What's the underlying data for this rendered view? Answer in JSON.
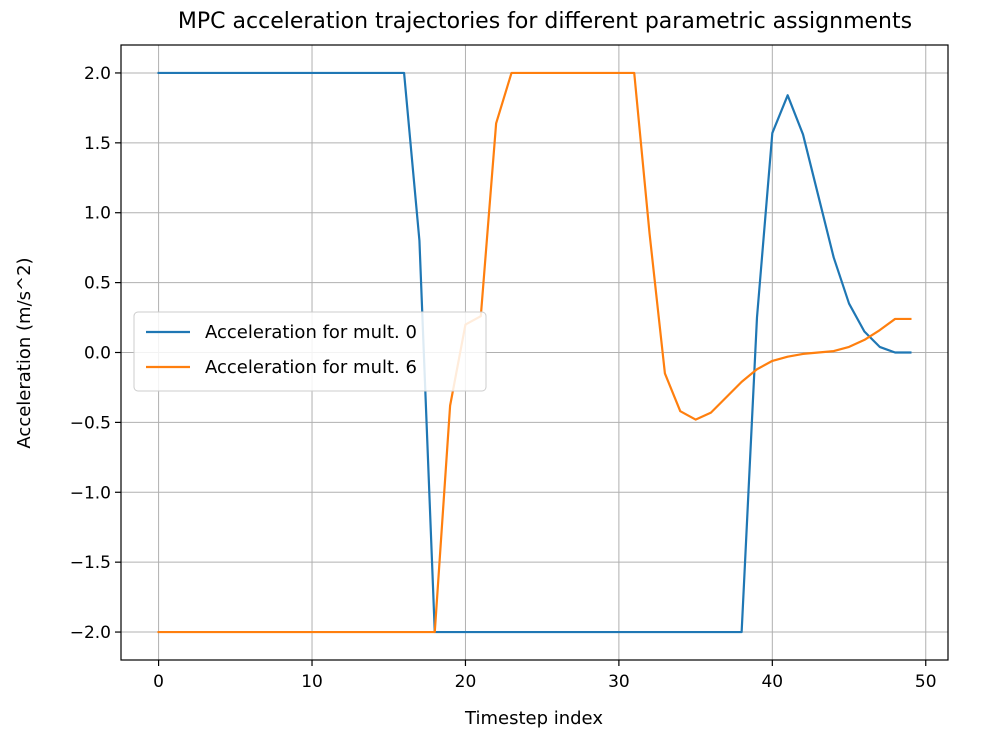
{
  "chart_data": {
    "type": "line",
    "title": "MPC acceleration trajectories for different parametric assignments",
    "xlabel": "Timestep index",
    "ylabel": "Acceleration (m/s^2)",
    "xlim": [
      -2.45,
      51.45
    ],
    "ylim": [
      -2.2,
      2.2
    ],
    "xticks": [
      0,
      10,
      20,
      30,
      40,
      50
    ],
    "xtick_labels": [
      "0",
      "10",
      "20",
      "30",
      "40",
      "50"
    ],
    "yticks": [
      2.0,
      1.5,
      1.0,
      0.5,
      0.0,
      -0.5,
      -1.0,
      -1.5,
      -2.0
    ],
    "ytick_labels": [
      "2.0",
      "1.5",
      "1.0",
      "0.5",
      "0.0",
      "−0.5",
      "−1.0",
      "−1.5",
      "−2.0"
    ],
    "grid": true,
    "legend": {
      "position": "center-left"
    },
    "series": [
      {
        "name": "Acceleration for mult. 0",
        "color": "#1f77b4",
        "x": [
          0,
          1,
          2,
          3,
          4,
          5,
          6,
          7,
          8,
          9,
          10,
          11,
          12,
          13,
          14,
          15,
          16,
          17,
          18,
          19,
          20,
          21,
          22,
          23,
          24,
          25,
          26,
          27,
          28,
          29,
          30,
          31,
          32,
          33,
          34,
          35,
          36,
          37,
          38,
          39,
          40,
          41,
          42,
          43,
          44,
          45,
          46,
          47,
          48,
          49
        ],
        "y": [
          2.0,
          2.0,
          2.0,
          2.0,
          2.0,
          2.0,
          2.0,
          2.0,
          2.0,
          2.0,
          2.0,
          2.0,
          2.0,
          2.0,
          2.0,
          2.0,
          2.0,
          0.8,
          -2.0,
          -2.0,
          -2.0,
          -2.0,
          -2.0,
          -2.0,
          -2.0,
          -2.0,
          -2.0,
          -2.0,
          -2.0,
          -2.0,
          -2.0,
          -2.0,
          -2.0,
          -2.0,
          -2.0,
          -2.0,
          -2.0,
          -2.0,
          -2.0,
          0.25,
          1.57,
          1.84,
          1.56,
          1.12,
          0.68,
          0.35,
          0.15,
          0.04,
          0.0,
          0.0
        ]
      },
      {
        "name": "Acceleration for mult. 6",
        "color": "#ff7f0e",
        "x": [
          0,
          1,
          2,
          3,
          4,
          5,
          6,
          7,
          8,
          9,
          10,
          11,
          12,
          13,
          14,
          15,
          16,
          17,
          18,
          19,
          20,
          21,
          22,
          23,
          24,
          25,
          26,
          27,
          28,
          29,
          30,
          31,
          32,
          33,
          34,
          35,
          36,
          37,
          38,
          39,
          40,
          41,
          42,
          43,
          44,
          45,
          46,
          47,
          48,
          49
        ],
        "y": [
          -2.0,
          -2.0,
          -2.0,
          -2.0,
          -2.0,
          -2.0,
          -2.0,
          -2.0,
          -2.0,
          -2.0,
          -2.0,
          -2.0,
          -2.0,
          -2.0,
          -2.0,
          -2.0,
          -2.0,
          -2.0,
          -2.0,
          -0.38,
          0.2,
          0.26,
          1.64,
          2.0,
          2.0,
          2.0,
          2.0,
          2.0,
          2.0,
          2.0,
          2.0,
          2.0,
          0.85,
          -0.15,
          -0.42,
          -0.48,
          -0.43,
          -0.32,
          -0.21,
          -0.12,
          -0.06,
          -0.03,
          -0.01,
          0.0,
          0.01,
          0.04,
          0.09,
          0.16,
          0.24,
          0.24
        ]
      }
    ]
  }
}
